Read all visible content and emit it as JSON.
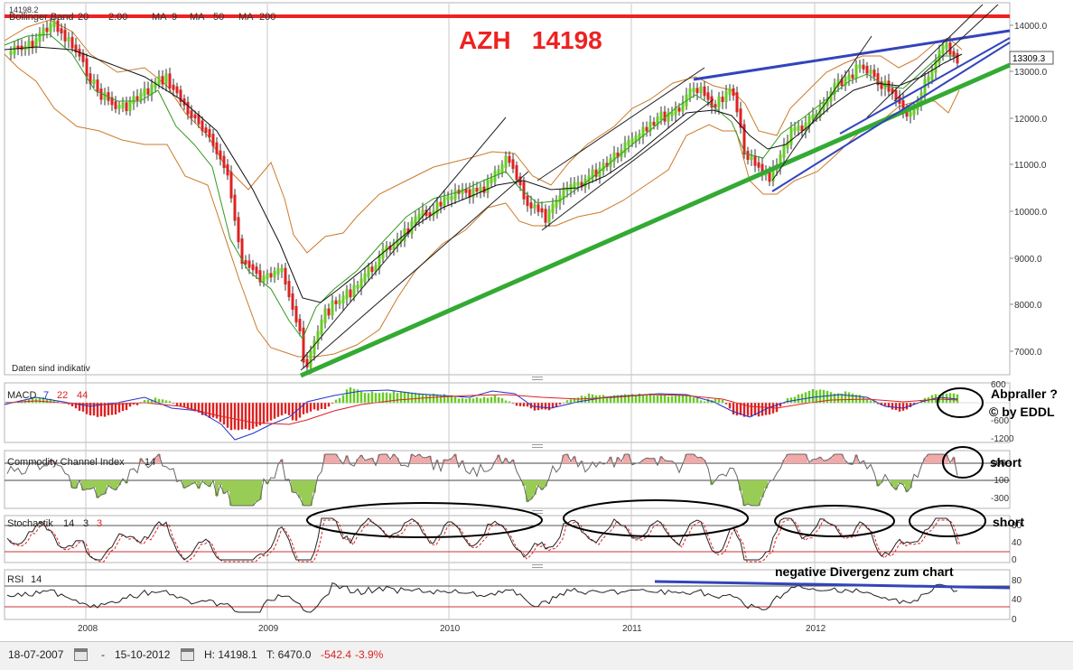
{
  "title": "AZH   14198",
  "header": {
    "price_flag": "14198.2",
    "indicator_strip": [
      "Bollinger Band",
      "20",
      "2.00",
      "MA",
      "9",
      "MA",
      "50",
      "MA",
      "200"
    ],
    "last_price": "13309.3"
  },
  "notes": {
    "daten": "Daten sind indikativ",
    "abpraller": "Abpraller ?",
    "copyright": "© by EDDL",
    "short1": "short",
    "short2": "short",
    "divergenz": "negative Divergenz zum chart"
  },
  "price_axis": [
    "14000.0",
    "13000.0",
    "12000.0",
    "11000.0",
    "10000.0",
    "9000.0",
    "8000.0",
    "7000.0"
  ],
  "x_axis": [
    "2008",
    "2009",
    "2010",
    "2011",
    "2012"
  ],
  "panels": {
    "macd": {
      "label": [
        "MACD",
        "7",
        "22",
        "44"
      ],
      "ticks": [
        "600",
        "-600",
        "-1200"
      ]
    },
    "cci": {
      "label": [
        "Commodity Channel Index",
        "14"
      ],
      "ticks": [
        "100",
        "-100",
        "-300"
      ]
    },
    "stoch": {
      "label": [
        "Stochastik",
        "14",
        "3",
        "3"
      ],
      "ticks": [
        "80",
        "40",
        "0"
      ]
    },
    "rsi": {
      "label": [
        "RSI",
        "14"
      ],
      "ticks": [
        "80",
        "40",
        "0"
      ]
    }
  },
  "footer": {
    "start": "18-07-2007",
    "dash": "-",
    "end": "15-10-2012",
    "high": "H: 14198.1",
    "low": "T: 6470.0",
    "change": "-542.4",
    "change_pct": "-3.9%"
  },
  "colors": {
    "up": "#66cc22",
    "down": "#dd2222",
    "resistance": "#ee2222",
    "support": "#33aa33",
    "trend_blue": "#3344bb",
    "bollinger": "#cc7a2a",
    "ma_green": "#339922",
    "ma_black": "#111111"
  },
  "chart_data": {
    "type": "line",
    "title": "AZH   14198",
    "xlabel": "",
    "ylabel": "",
    "ylim": [
      6000,
      14600
    ],
    "x_range": [
      "2007-07-18",
      "2012-10-15"
    ],
    "series": [
      {
        "name": "AZH",
        "points": [
          [
            "2007-07-18",
            13400
          ],
          [
            "2007-09-01",
            13550
          ],
          [
            "2007-10-15",
            14050
          ],
          [
            "2007-12-01",
            13500
          ],
          [
            "2008-01-15",
            12600
          ],
          [
            "2008-03-01",
            12200
          ],
          [
            "2008-04-15",
            12500
          ],
          [
            "2008-06-01",
            12900
          ],
          [
            "2008-07-15",
            12200
          ],
          [
            "2008-09-01",
            11500
          ],
          [
            "2008-10-01",
            11000
          ],
          [
            "2008-11-01",
            9000
          ],
          [
            "2008-12-15",
            8500
          ],
          [
            "2009-01-20",
            8900
          ],
          [
            "2009-03-01",
            7300
          ],
          [
            "2009-03-09",
            6500
          ],
          [
            "2009-04-15",
            7800
          ],
          [
            "2009-06-01",
            8200
          ],
          [
            "2009-07-15",
            8700
          ],
          [
            "2009-09-01",
            9300
          ],
          [
            "2009-11-01",
            9900
          ],
          [
            "2010-01-15",
            10400
          ],
          [
            "2010-03-01",
            10400
          ],
          [
            "2010-04-25",
            11150
          ],
          [
            "2010-06-01",
            10200
          ],
          [
            "2010-07-10",
            9850
          ],
          [
            "2010-08-20",
            10500
          ],
          [
            "2010-10-01",
            10700
          ],
          [
            "2010-12-01",
            11300
          ],
          [
            "2011-02-01",
            11900
          ],
          [
            "2011-04-01",
            12200
          ],
          [
            "2011-05-01",
            12700
          ],
          [
            "2011-06-15",
            12300
          ],
          [
            "2011-07-20",
            12600
          ],
          [
            "2011-08-15",
            11200
          ],
          [
            "2011-10-01",
            10700
          ],
          [
            "2011-11-15",
            11700
          ],
          [
            "2012-01-01",
            12000
          ],
          [
            "2012-02-15",
            12700
          ],
          [
            "2012-04-01",
            13100
          ],
          [
            "2012-06-01",
            12600
          ],
          [
            "2012-07-10",
            12000
          ],
          [
            "2012-08-15",
            12900
          ],
          [
            "2012-09-20",
            13550
          ],
          [
            "2012-10-15",
            13309
          ]
        ]
      }
    ]
  }
}
